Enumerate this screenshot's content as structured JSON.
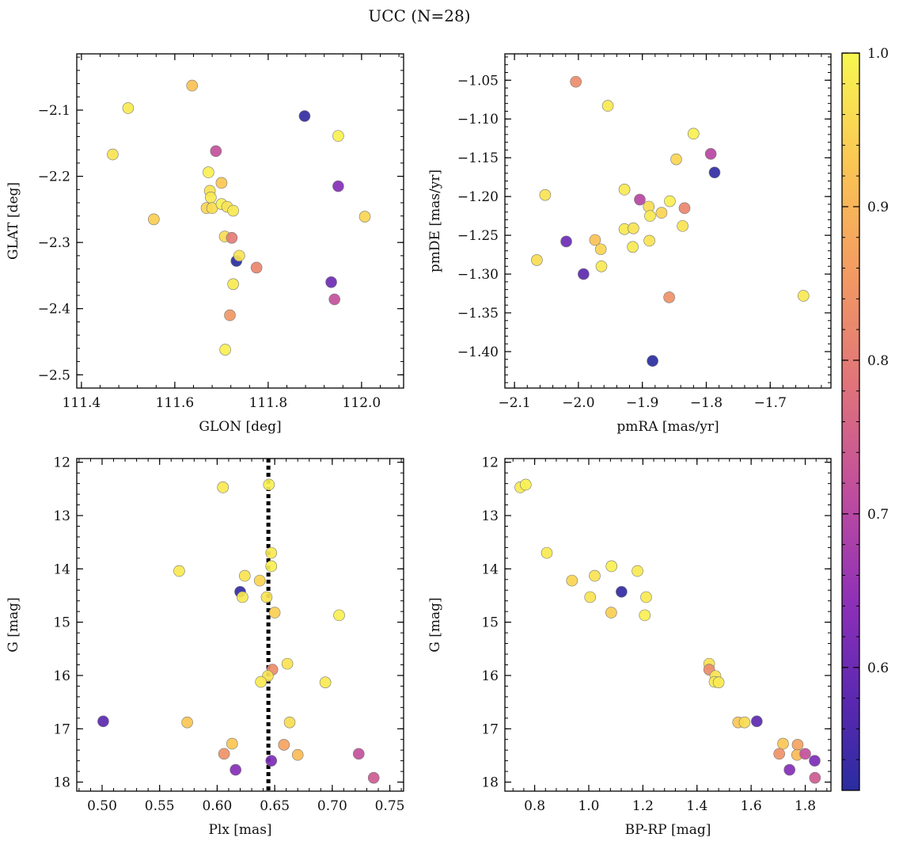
{
  "title": "UCC (N=28)",
  "colorbar": {
    "min": 0.52,
    "max": 1.0,
    "ticks": [
      0.6,
      0.7,
      0.8,
      0.9,
      1.0
    ],
    "tick_labels": [
      "0.6",
      "0.7",
      "0.8",
      "0.9",
      "1.0"
    ]
  },
  "chart_data": [
    {
      "type": "scatter",
      "xlabel": "GLON [deg]",
      "ylabel": "GLAT [deg]",
      "xlim": [
        111.39,
        112.09
      ],
      "ylim": [
        -2.52,
        -2.015
      ],
      "xticks": [
        111.4,
        111.6,
        111.8,
        112.0
      ],
      "xtick_labels": [
        "111.4",
        "111.6",
        "111.8",
        "112.0"
      ],
      "yticks": [
        -2.5,
        -2.4,
        -2.3,
        -2.2,
        -2.1
      ],
      "ytick_labels": [
        "−2.5",
        "−2.4",
        "−2.3",
        "−2.2",
        "−2.1"
      ],
      "points": [
        {
          "x": 111.467,
          "y": -2.167,
          "c": 0.97
        },
        {
          "x": 111.5,
          "y": -2.097,
          "c": 0.98
        },
        {
          "x": 111.555,
          "y": -2.265,
          "c": 0.94
        },
        {
          "x": 111.637,
          "y": -2.063,
          "c": 0.92
        },
        {
          "x": 111.688,
          "y": -2.162,
          "c": 0.72
        },
        {
          "x": 111.672,
          "y": -2.194,
          "c": 0.99
        },
        {
          "x": 111.675,
          "y": -2.222,
          "c": 0.97
        },
        {
          "x": 111.677,
          "y": -2.232,
          "c": 0.98
        },
        {
          "x": 111.668,
          "y": -2.248,
          "c": 0.95
        },
        {
          "x": 111.68,
          "y": -2.248,
          "c": 0.96
        },
        {
          "x": 111.7,
          "y": -2.21,
          "c": 0.93
        },
        {
          "x": 111.7,
          "y": -2.242,
          "c": 0.99
        },
        {
          "x": 111.712,
          "y": -2.246,
          "c": 0.97
        },
        {
          "x": 111.725,
          "y": -2.252,
          "c": 0.98
        },
        {
          "x": 111.707,
          "y": -2.291,
          "c": 0.96
        },
        {
          "x": 111.722,
          "y": -2.293,
          "c": 0.8
        },
        {
          "x": 111.732,
          "y": -2.328,
          "c": 0.52
        },
        {
          "x": 111.738,
          "y": -2.32,
          "c": 0.97
        },
        {
          "x": 111.725,
          "y": -2.363,
          "c": 0.98
        },
        {
          "x": 111.775,
          "y": -2.338,
          "c": 0.82
        },
        {
          "x": 111.718,
          "y": -2.41,
          "c": 0.85
        },
        {
          "x": 111.708,
          "y": -2.462,
          "c": 0.99
        },
        {
          "x": 111.878,
          "y": -2.109,
          "c": 0.53
        },
        {
          "x": 111.95,
          "y": -2.139,
          "c": 0.99
        },
        {
          "x": 111.95,
          "y": -2.215,
          "c": 0.63
        },
        {
          "x": 111.935,
          "y": -2.36,
          "c": 0.6
        },
        {
          "x": 111.942,
          "y": -2.386,
          "c": 0.72
        },
        {
          "x": 112.007,
          "y": -2.261,
          "c": 0.95
        }
      ]
    },
    {
      "type": "scatter",
      "xlabel": "pmRA [mas/yr]",
      "ylabel": "pmDE [mas/yr]",
      "xlim": [
        -2.115,
        -1.605
      ],
      "ylim": [
        -1.447,
        -1.016
      ],
      "xticks": [
        -2.1,
        -2.0,
        -1.9,
        -1.8,
        -1.7
      ],
      "xtick_labels": [
        "−2.1",
        "−2.0",
        "−1.9",
        "−1.8",
        "−1.7"
      ],
      "yticks": [
        -1.4,
        -1.35,
        -1.3,
        -1.25,
        -1.2,
        -1.15,
        -1.1,
        -1.05
      ],
      "ytick_labels": [
        "−1.40",
        "−1.35",
        "−1.30",
        "−1.25",
        "−1.20",
        "−1.15",
        "−1.10",
        "−1.05"
      ],
      "points": [
        {
          "x": -2.004,
          "y": -1.052,
          "c": 0.83
        },
        {
          "x": -1.954,
          "y": -1.083,
          "c": 0.98
        },
        {
          "x": -1.82,
          "y": -1.119,
          "c": 0.99
        },
        {
          "x": -1.793,
          "y": -1.145,
          "c": 0.7
        },
        {
          "x": -1.847,
          "y": -1.152,
          "c": 0.95
        },
        {
          "x": -1.787,
          "y": -1.169,
          "c": 0.53
        },
        {
          "x": -1.928,
          "y": -1.191,
          "c": 0.98
        },
        {
          "x": -2.052,
          "y": -1.198,
          "c": 0.97
        },
        {
          "x": -1.904,
          "y": -1.204,
          "c": 0.7
        },
        {
          "x": -1.857,
          "y": -1.206,
          "c": 0.99
        },
        {
          "x": -1.89,
          "y": -1.213,
          "c": 0.96
        },
        {
          "x": -1.834,
          "y": -1.215,
          "c": 0.82
        },
        {
          "x": -1.87,
          "y": -1.221,
          "c": 0.95
        },
        {
          "x": -1.888,
          "y": -1.225,
          "c": 0.98
        },
        {
          "x": -1.837,
          "y": -1.238,
          "c": 0.97
        },
        {
          "x": -1.928,
          "y": -1.242,
          "c": 0.98
        },
        {
          "x": -1.914,
          "y": -1.241,
          "c": 0.97
        },
        {
          "x": -1.889,
          "y": -1.257,
          "c": 0.97
        },
        {
          "x": -1.974,
          "y": -1.256,
          "c": 0.92
        },
        {
          "x": -2.019,
          "y": -1.258,
          "c": 0.6
        },
        {
          "x": -1.915,
          "y": -1.265,
          "c": 0.98
        },
        {
          "x": -1.965,
          "y": -1.268,
          "c": 0.95
        },
        {
          "x": -2.065,
          "y": -1.282,
          "c": 0.96
        },
        {
          "x": -1.964,
          "y": -1.29,
          "c": 0.98
        },
        {
          "x": -1.992,
          "y": -1.3,
          "c": 0.58
        },
        {
          "x": -1.858,
          "y": -1.33,
          "c": 0.84
        },
        {
          "x": -1.648,
          "y": -1.328,
          "c": 0.98
        },
        {
          "x": -1.884,
          "y": -1.412,
          "c": 0.52
        }
      ]
    },
    {
      "type": "scatter",
      "xlabel": "Plx [mas]",
      "ylabel": "G [mag]",
      "xlim": [
        0.478,
        0.762
      ],
      "ylim": [
        18.17,
        11.93
      ],
      "xticks": [
        0.5,
        0.55,
        0.6,
        0.65,
        0.7,
        0.75
      ],
      "xtick_labels": [
        "0.50",
        "0.55",
        "0.60",
        "0.65",
        "0.70",
        "0.75"
      ],
      "yticks": [
        12,
        13,
        14,
        15,
        16,
        17,
        18
      ],
      "ytick_labels": [
        "12",
        "13",
        "14",
        "15",
        "16",
        "17",
        "18"
      ],
      "vline": 0.6445,
      "points": [
        {
          "x": 0.605,
          "y": 12.47,
          "c": 0.98
        },
        {
          "x": 0.645,
          "y": 12.42,
          "c": 0.99
        },
        {
          "x": 0.647,
          "y": 13.7,
          "c": 0.98
        },
        {
          "x": 0.647,
          "y": 13.95,
          "c": 0.99
        },
        {
          "x": 0.567,
          "y": 14.04,
          "c": 0.98
        },
        {
          "x": 0.624,
          "y": 14.13,
          "c": 0.97
        },
        {
          "x": 0.637,
          "y": 14.22,
          "c": 0.95
        },
        {
          "x": 0.62,
          "y": 14.43,
          "c": 0.53
        },
        {
          "x": 0.622,
          "y": 14.53,
          "c": 0.98
        },
        {
          "x": 0.643,
          "y": 14.53,
          "c": 0.97
        },
        {
          "x": 0.65,
          "y": 14.82,
          "c": 0.94
        },
        {
          "x": 0.706,
          "y": 14.87,
          "c": 0.99
        },
        {
          "x": 0.661,
          "y": 15.78,
          "c": 0.97
        },
        {
          "x": 0.648,
          "y": 15.89,
          "c": 0.83
        },
        {
          "x": 0.644,
          "y": 16.01,
          "c": 0.97
        },
        {
          "x": 0.638,
          "y": 16.12,
          "c": 0.98
        },
        {
          "x": 0.694,
          "y": 16.13,
          "c": 0.98
        },
        {
          "x": 0.501,
          "y": 16.86,
          "c": 0.58
        },
        {
          "x": 0.574,
          "y": 16.88,
          "c": 0.93
        },
        {
          "x": 0.663,
          "y": 16.88,
          "c": 0.96
        },
        {
          "x": 0.613,
          "y": 17.28,
          "c": 0.93
        },
        {
          "x": 0.658,
          "y": 17.3,
          "c": 0.87
        },
        {
          "x": 0.606,
          "y": 17.47,
          "c": 0.84
        },
        {
          "x": 0.67,
          "y": 17.49,
          "c": 0.91
        },
        {
          "x": 0.723,
          "y": 17.47,
          "c": 0.72
        },
        {
          "x": 0.647,
          "y": 17.6,
          "c": 0.62
        },
        {
          "x": 0.616,
          "y": 17.77,
          "c": 0.63
        },
        {
          "x": 0.736,
          "y": 17.92,
          "c": 0.74
        }
      ]
    },
    {
      "type": "scatter",
      "xlabel": "BP-RP [mag]",
      "ylabel": "G [mag]",
      "xlim": [
        0.69,
        1.895
      ],
      "ylim": [
        18.17,
        11.93
      ],
      "xticks": [
        0.8,
        1.0,
        1.2,
        1.4,
        1.6,
        1.8
      ],
      "xtick_labels": [
        "0.8",
        "1.0",
        "1.2",
        "1.4",
        "1.6",
        "1.8"
      ],
      "yticks": [
        12,
        13,
        14,
        15,
        16,
        17,
        18
      ],
      "ytick_labels": [
        "12",
        "13",
        "14",
        "15",
        "16",
        "17",
        "18"
      ],
      "points": [
        {
          "x": 0.747,
          "y": 12.47,
          "c": 0.98
        },
        {
          "x": 0.767,
          "y": 12.42,
          "c": 0.99
        },
        {
          "x": 0.845,
          "y": 13.7,
          "c": 0.98
        },
        {
          "x": 1.084,
          "y": 13.95,
          "c": 0.99
        },
        {
          "x": 1.022,
          "y": 14.13,
          "c": 0.97
        },
        {
          "x": 1.18,
          "y": 14.04,
          "c": 0.98
        },
        {
          "x": 0.938,
          "y": 14.22,
          "c": 0.95
        },
        {
          "x": 1.121,
          "y": 14.43,
          "c": 0.53
        },
        {
          "x": 1.005,
          "y": 14.53,
          "c": 0.97
        },
        {
          "x": 1.212,
          "y": 14.53,
          "c": 0.98
        },
        {
          "x": 1.083,
          "y": 14.82,
          "c": 0.94
        },
        {
          "x": 1.207,
          "y": 14.87,
          "c": 0.99
        },
        {
          "x": 1.445,
          "y": 15.78,
          "c": 0.97
        },
        {
          "x": 1.445,
          "y": 15.89,
          "c": 0.83
        },
        {
          "x": 1.468,
          "y": 16.01,
          "c": 0.97
        },
        {
          "x": 1.465,
          "y": 16.12,
          "c": 0.98
        },
        {
          "x": 1.48,
          "y": 16.13,
          "c": 0.98
        },
        {
          "x": 1.552,
          "y": 16.88,
          "c": 0.93
        },
        {
          "x": 1.576,
          "y": 16.88,
          "c": 0.96
        },
        {
          "x": 1.621,
          "y": 16.86,
          "c": 0.58
        },
        {
          "x": 1.718,
          "y": 17.28,
          "c": 0.93
        },
        {
          "x": 1.772,
          "y": 17.3,
          "c": 0.87
        },
        {
          "x": 1.704,
          "y": 17.47,
          "c": 0.84
        },
        {
          "x": 1.77,
          "y": 17.49,
          "c": 0.91
        },
        {
          "x": 1.8,
          "y": 17.47,
          "c": 0.72
        },
        {
          "x": 1.835,
          "y": 17.6,
          "c": 0.62
        },
        {
          "x": 1.742,
          "y": 17.77,
          "c": 0.63
        },
        {
          "x": 1.836,
          "y": 17.92,
          "c": 0.74
        }
      ]
    }
  ]
}
